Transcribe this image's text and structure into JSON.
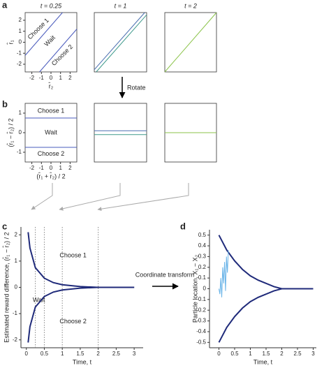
{
  "panel_labels": [
    "a",
    "b",
    "c",
    "d"
  ],
  "rotate_label": "Rotate",
  "transform_label": "Coordinate transform",
  "chart_data": [
    {
      "type": "line",
      "title": "t = 0.25",
      "xlabel": "r̂₂",
      "ylabel": "r̂₁",
      "region_labels": [
        "Choose 1",
        "Wait",
        "Choose 2"
      ],
      "xlim": [
        -2.7,
        2.7
      ],
      "ylim": [
        -2.7,
        2.7
      ],
      "xticks": [
        -2,
        -1,
        0,
        1,
        2
      ],
      "yticks": [
        -2,
        -1,
        0,
        1,
        2
      ],
      "series": [
        {
          "color": "#4a5bbd",
          "x": [
            -2.7,
            1.2
          ],
          "values": [
            -1.2,
            2.7
          ]
        },
        {
          "color": "#4a5bbd",
          "x": [
            -1.2,
            2.7
          ],
          "values": [
            -2.7,
            1.2
          ]
        }
      ]
    },
    {
      "type": "line",
      "title": "t = 1",
      "xlim": [
        -2.7,
        2.7
      ],
      "ylim": [
        -2.7,
        2.7
      ],
      "series": [
        {
          "color": "#4a6fb0",
          "x": [
            -2.7,
            2.5
          ],
          "values": [
            -2.5,
            2.7
          ]
        },
        {
          "color": "#3f9a8c",
          "x": [
            -2.5,
            2.7
          ],
          "values": [
            -2.7,
            2.5
          ]
        }
      ]
    },
    {
      "type": "line",
      "title": "t = 2",
      "xlim": [
        -2.7,
        2.7
      ],
      "ylim": [
        -2.7,
        2.7
      ],
      "series": [
        {
          "color": "#8bc34a",
          "x": [
            -2.7,
            2.7
          ],
          "values": [
            -2.7,
            2.7
          ]
        }
      ]
    },
    {
      "type": "line",
      "xlabel": "(r̂₁ + r̂₂) / 2",
      "ylabel": "(r̂₁ − r̂₂) / 2",
      "region_labels": [
        "Choose 1",
        "Wait",
        "Choose 2"
      ],
      "xlim": [
        -2.7,
        2.7
      ],
      "ylim": [
        -1.5,
        1.5
      ],
      "xticks": [
        -2,
        -1,
        0,
        1,
        2
      ],
      "yticks": [
        -1,
        0,
        1
      ],
      "series": [
        {
          "color": "#4a5bbd",
          "x": [
            -2.7,
            2.7
          ],
          "values": [
            0.75,
            0.75
          ]
        },
        {
          "color": "#4a5bbd",
          "x": [
            -2.7,
            2.7
          ],
          "values": [
            -0.75,
            -0.75
          ]
        }
      ]
    },
    {
      "type": "line",
      "xlim": [
        -2.7,
        2.7
      ],
      "ylim": [
        -1.5,
        1.5
      ],
      "series": [
        {
          "color": "#4a6fb0",
          "x": [
            -2.7,
            2.7
          ],
          "values": [
            0.1,
            0.1
          ]
        },
        {
          "color": "#3f9a8c",
          "x": [
            -2.7,
            2.7
          ],
          "values": [
            -0.1,
            -0.1
          ]
        }
      ]
    },
    {
      "type": "line",
      "xlim": [
        -2.7,
        2.7
      ],
      "ylim": [
        -1.5,
        1.5
      ],
      "series": [
        {
          "color": "#8bc34a",
          "x": [
            -2.7,
            2.7
          ],
          "values": [
            0,
            0
          ]
        }
      ]
    },
    {
      "type": "line",
      "xlabel": "Time, t",
      "ylabel": "Estimated reward difference, (r̂₁ − r̂₂) / 2",
      "region_labels": [
        "Choose 1",
        "Wait",
        "Choose 2"
      ],
      "xlim": [
        -0.15,
        3.25
      ],
      "ylim": [
        -2.3,
        2.3
      ],
      "xticks": [
        0,
        0.5,
        1,
        1.5,
        2,
        2.5,
        3
      ],
      "yticks": [
        -2,
        -1,
        0,
        1,
        2
      ],
      "vlines": [
        0.25,
        0.5,
        1,
        2
      ],
      "series": [
        {
          "color": "#1f2a7a",
          "x": [
            0.05,
            0.1,
            0.25,
            0.5,
            0.75,
            1,
            1.5,
            2,
            3
          ],
          "values": [
            2.1,
            1.5,
            0.75,
            0.35,
            0.18,
            0.1,
            0.03,
            0,
            0
          ]
        },
        {
          "color": "#1f2a7a",
          "x": [
            0.05,
            0.1,
            0.25,
            0.5,
            0.75,
            1,
            1.5,
            2,
            3
          ],
          "values": [
            -2.1,
            -1.5,
            -0.75,
            -0.35,
            -0.18,
            -0.1,
            -0.03,
            0,
            0
          ]
        }
      ]
    },
    {
      "type": "line",
      "xlabel": "Time, t",
      "ylabel": "Particle location, X₁ − X₂",
      "xlim": [
        -0.3,
        3.1
      ],
      "ylim": [
        -0.55,
        0.55
      ],
      "xticks": [
        0,
        0.5,
        1,
        1.5,
        2,
        2.5,
        3
      ],
      "yticks": [
        -0.5,
        -0.4,
        -0.3,
        -0.2,
        -0.1,
        0,
        0.1,
        0.2,
        0.3,
        0.4,
        0.5
      ],
      "series": [
        {
          "color": "#1f2a7a",
          "x": [
            0,
            0.25,
            0.5,
            0.75,
            1,
            1.25,
            1.5,
            1.75,
            2,
            3
          ],
          "values": [
            0.5,
            0.36,
            0.26,
            0.18,
            0.12,
            0.08,
            0.05,
            0.02,
            0,
            0
          ]
        },
        {
          "color": "#1f2a7a",
          "x": [
            0,
            0.25,
            0.5,
            0.75,
            1,
            1.25,
            1.5,
            1.75,
            2,
            3
          ],
          "values": [
            -0.5,
            -0.36,
            -0.26,
            -0.18,
            -0.12,
            -0.08,
            -0.05,
            -0.02,
            0,
            0
          ]
        },
        {
          "color": "#6ab4e8",
          "x": [
            0,
            0.03,
            0.06,
            0.09,
            0.12,
            0.15,
            0.18,
            0.21,
            0.24,
            0.27,
            0.3
          ],
          "values": [
            0,
            -0.05,
            0.1,
            -0.08,
            0.2,
            0.05,
            0.25,
            -0.02,
            0.3,
            0.15,
            0.36
          ]
        }
      ]
    }
  ]
}
